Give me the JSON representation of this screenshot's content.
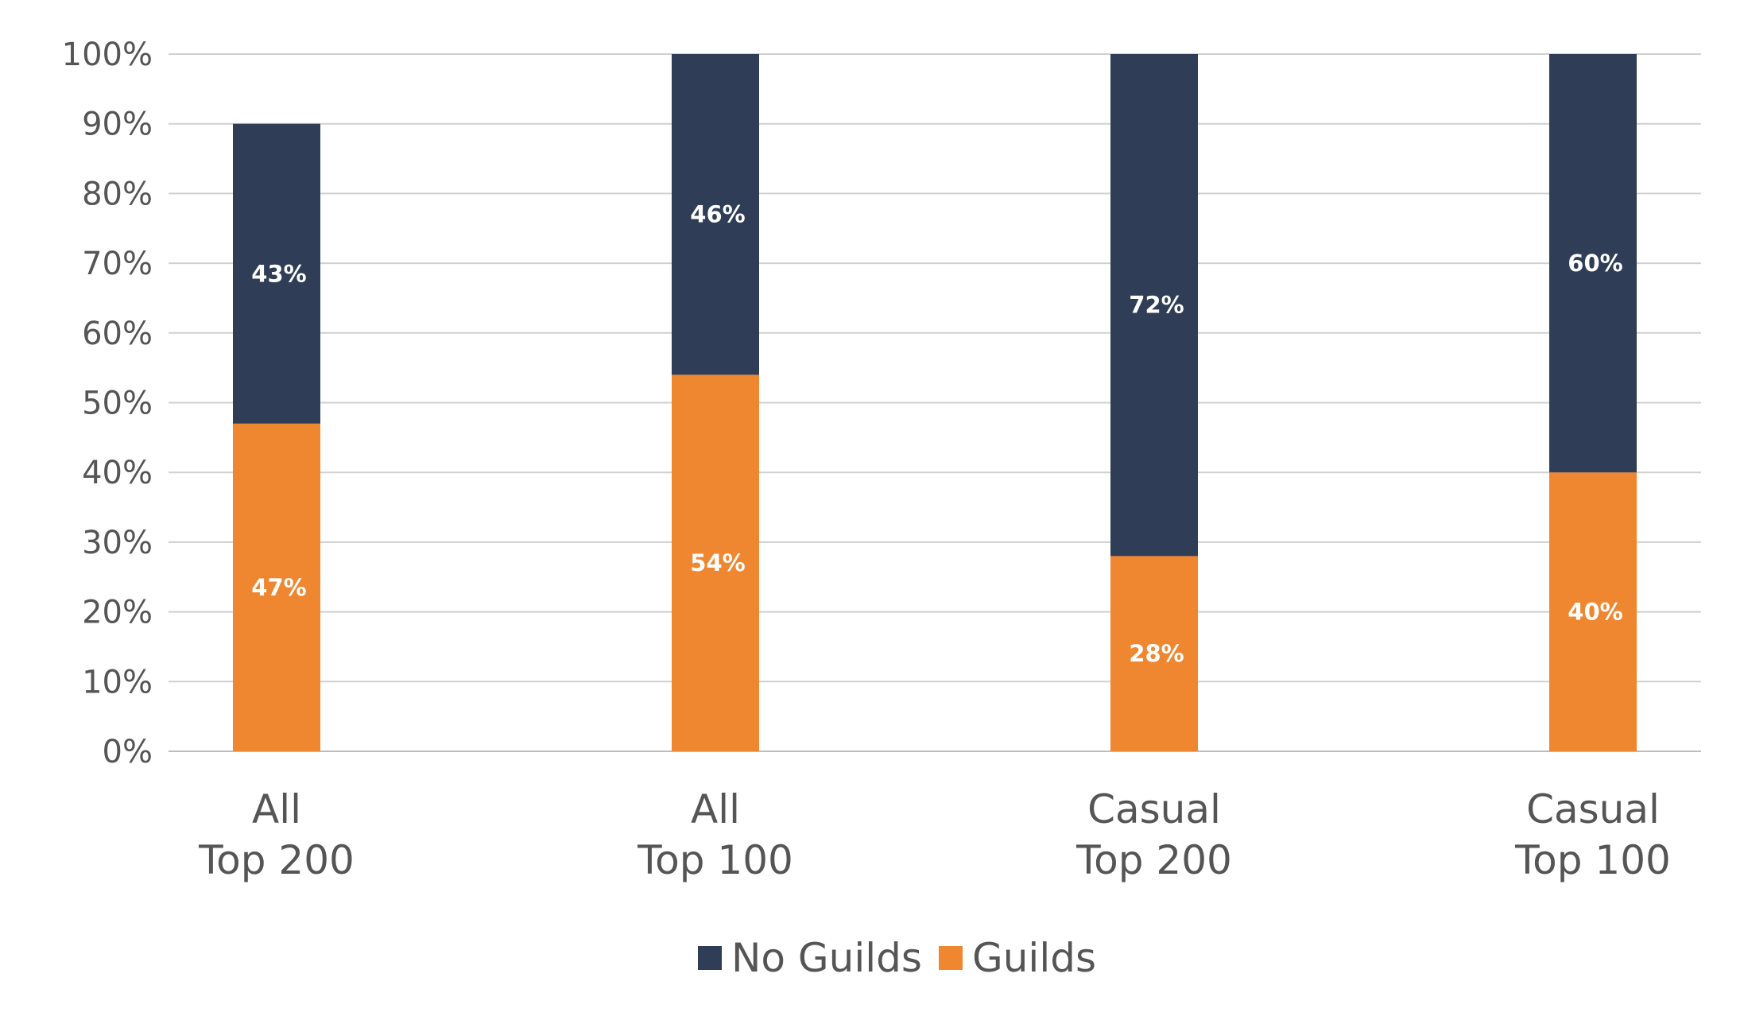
{
  "chart_data": {
    "type": "bar",
    "stacked": true,
    "categories": [
      [
        "All",
        "Top 200"
      ],
      [
        "All",
        "Top 100"
      ],
      [
        "Casual",
        "Top 200"
      ],
      [
        "Casual",
        "Top 100"
      ]
    ],
    "series": [
      {
        "name": "Guilds",
        "values": [
          47,
          54,
          28,
          40
        ],
        "labels": [
          "47%",
          "54%",
          "28%",
          "40%"
        ],
        "color": "#EF8731"
      },
      {
        "name": "No Guilds",
        "values": [
          43,
          46,
          72,
          60
        ],
        "labels": [
          "43%",
          "46%",
          "72%",
          "60%"
        ],
        "color": "#2F3D57"
      }
    ],
    "y_axis": {
      "ticks": [
        0,
        10,
        20,
        30,
        40,
        50,
        60,
        70,
        80,
        90,
        100
      ],
      "tick_labels": [
        "0%",
        "10%",
        "20%",
        "30%",
        "40%",
        "50%",
        "60%",
        "70%",
        "80%",
        "90%",
        "100%"
      ],
      "ylim": [
        0,
        100
      ]
    },
    "legend": {
      "position": "bottom",
      "items": [
        {
          "label": "No Guilds",
          "color": "#2F3D57"
        },
        {
          "label": "Guilds",
          "color": "#EF8731"
        }
      ]
    },
    "grid": true,
    "title": "",
    "xlabel": "",
    "ylabel": ""
  }
}
